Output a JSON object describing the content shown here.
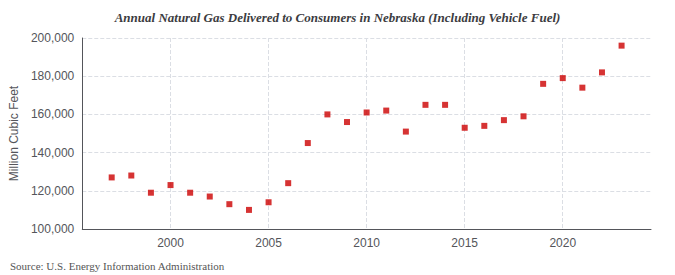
{
  "chart_data": {
    "type": "scatter",
    "title": "Annual Natural Gas Delivered to Consumers in Nebraska (Including Vehicle Fuel)",
    "ylabel": "Million Cubic Feet",
    "annotations": [
      "Source: U.S. Energy Information Administration"
    ],
    "x": [
      1997,
      1998,
      1999,
      2000,
      2001,
      2002,
      2003,
      2004,
      2005,
      2006,
      2007,
      2008,
      2009,
      2010,
      2011,
      2012,
      2013,
      2014,
      2015,
      2016,
      2017,
      2018,
      2019,
      2020,
      2021,
      2022,
      2023
    ],
    "values": [
      127000,
      128000,
      119000,
      123000,
      119000,
      117000,
      113000,
      110000,
      114000,
      124000,
      145000,
      160000,
      156000,
      161000,
      162000,
      151000,
      165000,
      165000,
      153000,
      154000,
      157000,
      159000,
      176000,
      179000,
      174000,
      182000,
      196000
    ],
    "color": "#cc0000",
    "marker": "square",
    "xlim": [
      1995.5,
      2024.5
    ],
    "xticks": [
      2000,
      2005,
      2010,
      2015,
      2020
    ],
    "ylim": [
      100000,
      200000
    ],
    "yticks": [
      {
        "value": 100000,
        "label": "100,000"
      },
      {
        "value": 120000,
        "label": "120,000"
      },
      {
        "value": 140000,
        "label": "140,000"
      },
      {
        "value": 160000,
        "label": "160,000"
      },
      {
        "value": 180000,
        "label": "180,000"
      },
      {
        "value": 200000,
        "label": "200,000"
      }
    ],
    "grid": true
  }
}
